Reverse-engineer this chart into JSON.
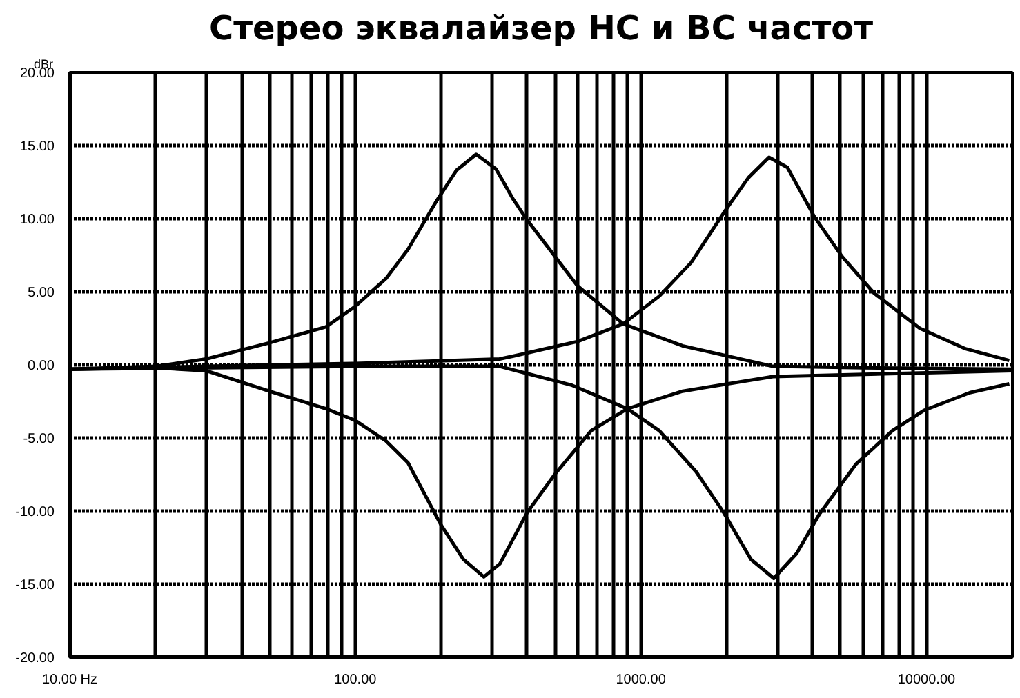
{
  "chart_data": {
    "type": "line",
    "title": "Стерео эквалайзер НС и ВС частот",
    "ylabel": "dBr",
    "log": "x",
    "grid": true,
    "line_style": "solid",
    "marker": "none",
    "xlim": [
      10,
      20000
    ],
    "ylim": [
      -20,
      20
    ],
    "xticks": [
      {
        "value": 10,
        "label": "10.00 Hz"
      },
      {
        "value": 20,
        "label": null
      },
      {
        "value": 30,
        "label": null
      },
      {
        "value": 40,
        "label": null
      },
      {
        "value": 50,
        "label": null
      },
      {
        "value": 60,
        "label": null
      },
      {
        "value": 70,
        "label": null
      },
      {
        "value": 80,
        "label": null
      },
      {
        "value": 90,
        "label": null
      },
      {
        "value": 100,
        "label": "100.00"
      },
      {
        "value": 200,
        "label": null
      },
      {
        "value": 300,
        "label": null
      },
      {
        "value": 400,
        "label": null
      },
      {
        "value": 500,
        "label": null
      },
      {
        "value": 600,
        "label": null
      },
      {
        "value": 700,
        "label": null
      },
      {
        "value": 800,
        "label": null
      },
      {
        "value": 900,
        "label": null
      },
      {
        "value": 1000,
        "label": "1000.00"
      },
      {
        "value": 2000,
        "label": null
      },
      {
        "value": 3000,
        "label": null
      },
      {
        "value": 4000,
        "label": null
      },
      {
        "value": 5000,
        "label": null
      },
      {
        "value": 6000,
        "label": null
      },
      {
        "value": 7000,
        "label": null
      },
      {
        "value": 8000,
        "label": null
      },
      {
        "value": 9000,
        "label": null
      },
      {
        "value": 10000,
        "label": "10000.00"
      }
    ],
    "yticks": [
      {
        "value": -20,
        "label": "-20.00"
      },
      {
        "value": -15,
        "label": "-15.00"
      },
      {
        "value": -10,
        "label": "-10.00"
      },
      {
        "value": -5,
        "label": "-5.00"
      },
      {
        "value": 0,
        "label": "0.00"
      },
      {
        "value": 5,
        "label": "5.00"
      },
      {
        "value": 10,
        "label": "10.00"
      },
      {
        "value": 15,
        "label": "15.00"
      },
      {
        "value": 20,
        "label": "20.00"
      }
    ],
    "series": [
      {
        "color": "#000000",
        "x": [
          10,
          20,
          30,
          50,
          79,
          100,
          128,
          153,
          191,
          226,
          265,
          311,
          358,
          400,
          600,
          867,
          1400,
          2900,
          6000,
          20000
        ],
        "values": [
          -0.3,
          -0.1,
          0.4,
          1.5,
          2.6,
          4.0,
          5.9,
          7.9,
          11.1,
          13.3,
          14.4,
          13.4,
          11.3,
          9.9,
          5.4,
          2.8,
          1.3,
          -0.1,
          -0.2,
          -0.3
        ]
      },
      {
        "color": "#000000",
        "x": [
          10,
          20,
          30,
          50,
          79,
          100,
          128,
          153,
          199,
          239,
          282,
          321,
          400,
          499,
          670,
          897,
          1400,
          2900,
          20000
        ],
        "values": [
          -0.3,
          -0.2,
          -0.4,
          -1.8,
          -3.0,
          -3.8,
          -5.2,
          -6.7,
          -10.9,
          -13.3,
          -14.5,
          -13.6,
          -10.1,
          -7.5,
          -4.5,
          -3.0,
          -1.8,
          -0.8,
          -0.4
        ]
      },
      {
        "color": "#000000",
        "x": [
          10,
          30,
          100,
          320,
          358,
          600,
          867,
          1160,
          1500,
          1950,
          2380,
          2810,
          3260,
          4060,
          5070,
          6560,
          9480,
          13700,
          19500
        ],
        "values": [
          -0.3,
          -0.1,
          0.1,
          0.4,
          0.6,
          1.6,
          2.8,
          4.7,
          7.0,
          10.4,
          12.8,
          14.2,
          13.5,
          10.1,
          7.4,
          4.9,
          2.5,
          1.1,
          0.3
        ]
      },
      {
        "color": "#000000",
        "x": [
          10,
          100,
          320,
          575,
          897,
          1160,
          1560,
          1950,
          2430,
          2920,
          3510,
          4220,
          5660,
          7600,
          9840,
          14200,
          19500
        ],
        "values": [
          -0.3,
          -0.1,
          -0.1,
          -1.4,
          -3.0,
          -4.5,
          -7.3,
          -10.1,
          -13.3,
          -14.6,
          -12.9,
          -10.2,
          -6.8,
          -4.5,
          -3.1,
          -1.9,
          -1.3
        ]
      }
    ]
  }
}
